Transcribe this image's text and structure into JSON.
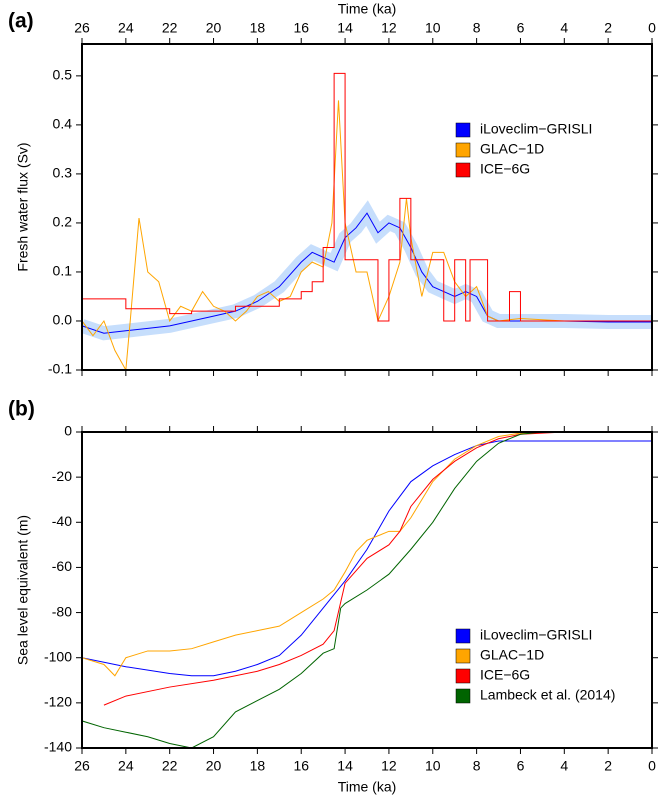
{
  "chart_data": [
    {
      "type": "line",
      "label": "(a)",
      "xlabel": "Time (ka)",
      "ylabel": "Fresh water flux (Sv)",
      "xaxis_position": "top",
      "legend": "upper right",
      "xlim": [
        26,
        0
      ],
      "xticks": [
        26,
        24,
        22,
        20,
        18,
        16,
        14,
        12,
        10,
        8,
        6,
        4,
        2,
        0
      ],
      "ylim": [
        -0.1,
        0.565
      ],
      "yticks": [
        -0.1,
        {
          "value": 0,
          "label": "0.0"
        },
        0.1,
        0.2,
        0.3,
        0.4,
        0.5
      ],
      "series": [
        {
          "name": "iLoveclim−GRISLI",
          "color": "#0000ff",
          "spread": true,
          "x": [
            26,
            25,
            24,
            23,
            22,
            21,
            20,
            19,
            18,
            17,
            16,
            15.5,
            15,
            14.5,
            14,
            13.5,
            13,
            12.5,
            12,
            11.5,
            11,
            10.5,
            10,
            9.5,
            9,
            8.5,
            8,
            7.5,
            7,
            6,
            4,
            2,
            0
          ],
          "values": [
            -0.01,
            -0.025,
            -0.02,
            -0.015,
            -0.01,
            0.0,
            0.01,
            0.02,
            0.04,
            0.07,
            0.12,
            0.14,
            0.13,
            0.12,
            0.17,
            0.19,
            0.22,
            0.18,
            0.2,
            0.19,
            0.15,
            0.1,
            0.07,
            0.06,
            0.05,
            0.06,
            0.05,
            0.01,
            0.0,
            0.0,
            0.0,
            -0.002,
            -0.002
          ]
        },
        {
          "name": "GLAC−1D",
          "color": "#ffa500",
          "x": [
            26,
            25.5,
            25,
            24.5,
            24,
            23.8,
            23.4,
            23,
            22.5,
            22,
            21.5,
            21,
            20.5,
            20,
            19.5,
            19,
            18.5,
            18,
            17.5,
            17,
            16.5,
            16,
            15.5,
            15,
            14.6,
            14.3,
            14,
            13.5,
            13,
            12.5,
            12,
            11.5,
            11.2,
            11,
            10.5,
            10,
            9.5,
            9,
            8.5,
            8,
            7.5,
            7,
            6,
            4,
            2,
            0
          ],
          "values": [
            0.0,
            -0.03,
            0.0,
            -0.06,
            -0.1,
            0.0,
            0.21,
            0.1,
            0.08,
            0.0,
            0.03,
            0.02,
            0.06,
            0.03,
            0.02,
            0.0,
            0.02,
            0.05,
            0.06,
            0.04,
            0.05,
            0.1,
            0.12,
            0.11,
            0.2,
            0.45,
            0.2,
            0.1,
            0.1,
            0.0,
            0.05,
            0.12,
            0.25,
            0.17,
            0.05,
            0.14,
            0.14,
            0.08,
            0.05,
            0.07,
            0.01,
            0.0,
            0.005,
            0.0,
            0.0,
            0.0
          ]
        },
        {
          "name": "ICE−6G",
          "color": "#ff0000",
          "step": true,
          "x": [
            26,
            24,
            22,
            21,
            19,
            17,
            16,
            15.5,
            15,
            14.5,
            14,
            12.5,
            12,
            11.5,
            11,
            9.5,
            9,
            8.5,
            8.3,
            8,
            7.5,
            6.5,
            6,
            0
          ],
          "values": [
            0.045,
            0.025,
            0.015,
            0.02,
            0.03,
            0.045,
            0.06,
            0.08,
            0.15,
            0.505,
            0.125,
            0.0,
            0.125,
            0.25,
            0.125,
            0.0,
            0.125,
            0.0,
            0.125,
            0.125,
            0.0,
            0.06,
            0.0,
            0.0
          ]
        }
      ]
    },
    {
      "type": "line",
      "label": "(b)",
      "xlabel": "Time (ka)",
      "ylabel": "Sea level equivalent (m)",
      "xaxis_position": "bottom",
      "legend": "lower right",
      "xlim": [
        26,
        0
      ],
      "xticks": [
        26,
        24,
        22,
        20,
        18,
        16,
        14,
        12,
        10,
        8,
        6,
        4,
        2,
        0
      ],
      "ylim": [
        -140,
        0
      ],
      "yticks": [
        -140,
        -120,
        -100,
        -80,
        -60,
        -40,
        -20,
        0
      ],
      "series": [
        {
          "name": "iLoveclim−GRISLI",
          "color": "#0000ff",
          "x": [
            26,
            24,
            22,
            21,
            20,
            19,
            18,
            17,
            16,
            15,
            14,
            13,
            12,
            11,
            10,
            9,
            8,
            7,
            6,
            4,
            2,
            0
          ],
          "values": [
            -100,
            -104,
            -107,
            -108,
            -108,
            -106,
            -103,
            -99,
            -90,
            -78,
            -66,
            -52,
            -35,
            -22,
            -15,
            -10,
            -6,
            -4,
            -4,
            -4,
            -4,
            -4
          ]
        },
        {
          "name": "GLAC−1D",
          "color": "#ffa500",
          "x": [
            26,
            25,
            24.5,
            24,
            23,
            22,
            21,
            20,
            19,
            18,
            17,
            16,
            15,
            14.5,
            14,
            13.5,
            13,
            12,
            11.5,
            11,
            10,
            9,
            8,
            7,
            6,
            4,
            0
          ],
          "values": [
            -100,
            -103,
            -108,
            -100,
            -97,
            -97,
            -96,
            -93,
            -90,
            -88,
            -86,
            -80,
            -74,
            -70,
            -62,
            -53,
            -48,
            -44,
            -44,
            -38,
            -22,
            -12,
            -6,
            -2,
            -0.5,
            0,
            0
          ]
        },
        {
          "name": "ICE−6G",
          "color": "#ff0000",
          "x": [
            25,
            24,
            22,
            20,
            18,
            17,
            16,
            15,
            14.5,
            14,
            13,
            12,
            11.5,
            11,
            10,
            9,
            8,
            7,
            6,
            4,
            2,
            0
          ],
          "values": [
            -121,
            -117,
            -113,
            -110,
            -106,
            -103,
            -99,
            -94,
            -88,
            -67,
            -56,
            -50,
            -44,
            -33,
            -21,
            -13,
            -7,
            -3,
            -1,
            0,
            0,
            0
          ]
        },
        {
          "name": "Lambeck et al. (2014)",
          "color": "#006400",
          "x": [
            26,
            25,
            24,
            23,
            22,
            21,
            20,
            19,
            18,
            17,
            16,
            15,
            14.5,
            14.2,
            14,
            13,
            12,
            11,
            10,
            9,
            8,
            7,
            6,
            5,
            0
          ],
          "values": [
            -128,
            -131,
            -133,
            -135,
            -138,
            -140,
            -135,
            -124,
            -119,
            -114,
            -107,
            -98,
            -96,
            -78,
            -76,
            -70,
            -63,
            -52,
            -40,
            -25,
            -13,
            -5,
            -1,
            0,
            0
          ]
        }
      ]
    }
  ]
}
